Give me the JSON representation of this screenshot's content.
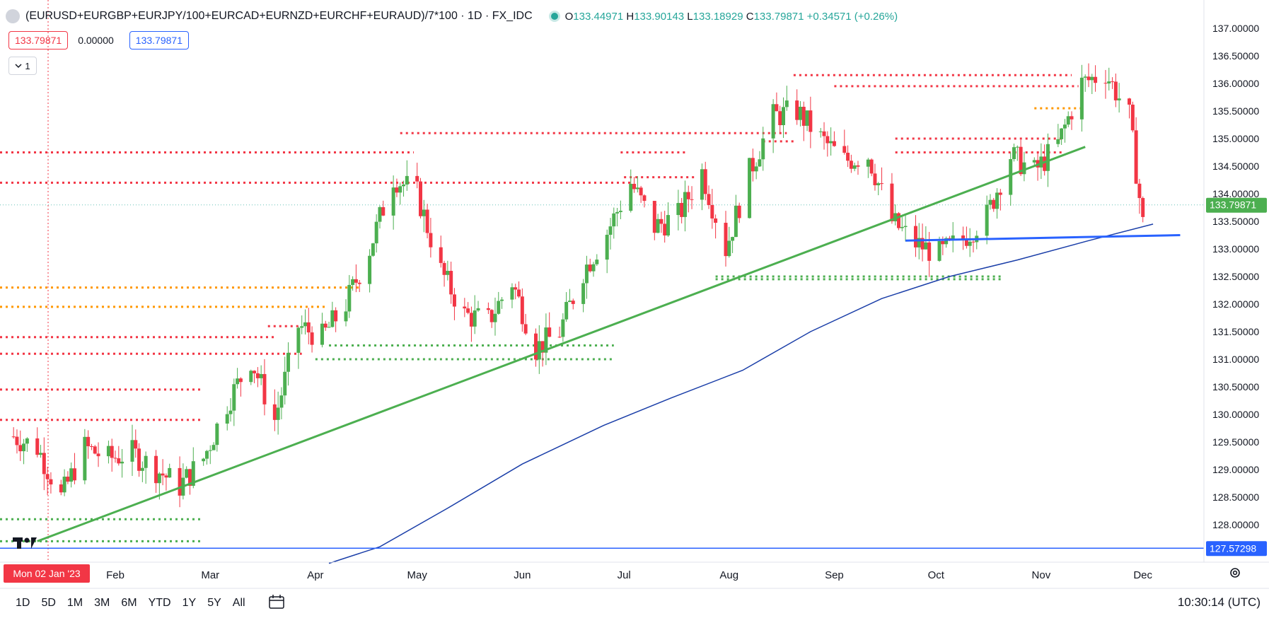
{
  "legend": {
    "symbol": "(EURUSD+EURGBP+EURJPY/100+EURCAD+EURNZD+EURCHF+EURAUD)/7*100 · 1D · FX_IDC",
    "o_label": "O",
    "o_value": "133.44971",
    "h_label": "H",
    "h_value": "133.90143",
    "l_label": "L",
    "l_value": "133.18929",
    "c_label": "C",
    "c_value": "133.79871",
    "change": "+0.34571 (+0.26%)"
  },
  "indicator_values": {
    "value1": "133.79871",
    "value2": "0.00000",
    "value3": "133.79871"
  },
  "collapse_button": "1",
  "time_ranges": [
    "1D",
    "5D",
    "1M",
    "3M",
    "6M",
    "YTD",
    "1Y",
    "5Y",
    "All"
  ],
  "clock": "10:30:14 (UTC)",
  "colors": {
    "up": "#4caf50",
    "down": "#f23645",
    "ma": "#1a3ea8",
    "trend": "#4caf50",
    "hline": "#2962ff",
    "resistance": "#f23645",
    "support": "#4caf50",
    "orange": "#ff9800"
  },
  "chart_data": {
    "type": "candlestick",
    "y_ticks": [
      "137.00000",
      "136.50000",
      "136.00000",
      "135.50000",
      "135.00000",
      "134.50000",
      "134.00000",
      "133.50000",
      "133.00000",
      "132.50000",
      "132.00000",
      "131.50000",
      "131.00000",
      "130.50000",
      "130.00000",
      "129.50000",
      "129.00000",
      "128.50000",
      "128.00000"
    ],
    "ylim": [
      127.3,
      137.25
    ],
    "x_labels": [
      "Feb",
      "Mar",
      "Apr",
      "May",
      "Jun",
      "Jul",
      "Aug",
      "Sep",
      "Oct",
      "Nov",
      "Dec"
    ],
    "crosshair_date": "Mon 02 Jan '23",
    "last_price_label": "133.79871",
    "hline_label": "127.57298",
    "hline_value": 127.57298,
    "last_price": 133.79871,
    "series": [
      {
        "date": "2023-01-02",
        "value": 129.6
      },
      {
        "date": "2023-01-09",
        "value": 129.4
      },
      {
        "date": "2023-01-16",
        "value": 128.5
      },
      {
        "date": "2023-01-23",
        "value": 129.4
      },
      {
        "date": "2023-01-30",
        "value": 129.2
      },
      {
        "date": "2023-02-06",
        "value": 129.3
      },
      {
        "date": "2023-02-13",
        "value": 129.0
      },
      {
        "date": "2023-02-20",
        "value": 128.7
      },
      {
        "date": "2023-02-27",
        "value": 129.2
      },
      {
        "date": "2023-03-06",
        "value": 130.2
      },
      {
        "date": "2023-03-13",
        "value": 131.0
      },
      {
        "date": "2023-03-20",
        "value": 129.9
      },
      {
        "date": "2023-03-27",
        "value": 131.6
      },
      {
        "date": "2023-04-03",
        "value": 131.4
      },
      {
        "date": "2023-04-10",
        "value": 132.0
      },
      {
        "date": "2023-04-17",
        "value": 133.0
      },
      {
        "date": "2023-04-24",
        "value": 134.3
      },
      {
        "date": "2023-05-01",
        "value": 134.0
      },
      {
        "date": "2023-05-08",
        "value": 132.6
      },
      {
        "date": "2023-05-15",
        "value": 131.8
      },
      {
        "date": "2023-05-22",
        "value": 131.7
      },
      {
        "date": "2023-05-29",
        "value": 132.4
      },
      {
        "date": "2023-06-05",
        "value": 131.2
      },
      {
        "date": "2023-06-12",
        "value": 131.5
      },
      {
        "date": "2023-06-19",
        "value": 132.6
      },
      {
        "date": "2023-06-26",
        "value": 133.3
      },
      {
        "date": "2023-07-03",
        "value": 134.2
      },
      {
        "date": "2023-07-10",
        "value": 133.4
      },
      {
        "date": "2023-07-17",
        "value": 133.6
      },
      {
        "date": "2023-07-24",
        "value": 134.4
      },
      {
        "date": "2023-07-31",
        "value": 133.0
      },
      {
        "date": "2023-08-07",
        "value": 134.4
      },
      {
        "date": "2023-08-14",
        "value": 135.4
      },
      {
        "date": "2023-08-21",
        "value": 135.5
      },
      {
        "date": "2023-08-28",
        "value": 135.0
      },
      {
        "date": "2023-09-04",
        "value": 134.6
      },
      {
        "date": "2023-09-11",
        "value": 134.7
      },
      {
        "date": "2023-09-18",
        "value": 133.5
      },
      {
        "date": "2023-09-25",
        "value": 133.1
      },
      {
        "date": "2023-10-02",
        "value": 132.9
      },
      {
        "date": "2023-10-09",
        "value": 133.2
      },
      {
        "date": "2023-10-16",
        "value": 133.6
      },
      {
        "date": "2023-10-23",
        "value": 134.7
      },
      {
        "date": "2023-10-30",
        "value": 134.4
      },
      {
        "date": "2023-11-06",
        "value": 134.9
      },
      {
        "date": "2023-11-13",
        "value": 136.0
      },
      {
        "date": "2023-11-20",
        "value": 136.2
      },
      {
        "date": "2023-11-27",
        "value": 135.4
      },
      {
        "date": "2023-12-01",
        "value": 133.45
      },
      {
        "date": "2023-12-04",
        "value": 133.79871
      }
    ],
    "ma_series": [
      {
        "date": "2023-04-05",
        "value": 127.3
      },
      {
        "date": "2023-04-20",
        "value": 127.6
      },
      {
        "date": "2023-05-10",
        "value": 128.3
      },
      {
        "date": "2023-06-01",
        "value": 129.1
      },
      {
        "date": "2023-06-25",
        "value": 129.8
      },
      {
        "date": "2023-07-15",
        "value": 130.3
      },
      {
        "date": "2023-08-05",
        "value": 130.8
      },
      {
        "date": "2023-08-25",
        "value": 131.5
      },
      {
        "date": "2023-09-15",
        "value": 132.1
      },
      {
        "date": "2023-10-05",
        "value": 132.5
      },
      {
        "date": "2023-10-25",
        "value": 132.8
      },
      {
        "date": "2023-11-15",
        "value": 133.15
      },
      {
        "date": "2023-12-04",
        "value": 133.45
      }
    ],
    "trendline": [
      {
        "date": "2023-01-09",
        "value": 127.7
      },
      {
        "date": "2023-11-14",
        "value": 134.85
      }
    ],
    "blue_segment": [
      {
        "date": "2023-09-22",
        "value": 133.15
      },
      {
        "date": "2023-12-12",
        "value": 133.25
      }
    ],
    "levels": [
      {
        "value": 134.75,
        "from": "2022-12-20",
        "to": "2023-04-30",
        "color": "resistance"
      },
      {
        "value": 134.2,
        "from": "2022-12-20",
        "to": "2023-07-03",
        "color": "resistance"
      },
      {
        "value": 135.1,
        "from": "2023-04-26",
        "to": "2023-08-18",
        "color": "resistance"
      },
      {
        "value": 136.15,
        "from": "2023-08-20",
        "to": "2023-11-10",
        "color": "resistance"
      },
      {
        "value": 135.95,
        "from": "2023-09-01",
        "to": "2023-11-12",
        "color": "resistance"
      },
      {
        "value": 135.0,
        "from": "2023-09-19",
        "to": "2023-11-08",
        "color": "resistance"
      },
      {
        "value": 134.75,
        "from": "2023-09-19",
        "to": "2023-11-08",
        "color": "resistance"
      },
      {
        "value": 134.75,
        "from": "2023-06-30",
        "to": "2023-07-20",
        "color": "resistance"
      },
      {
        "value": 134.95,
        "from": "2023-08-11",
        "to": "2023-08-21",
        "color": "resistance"
      },
      {
        "value": 131.4,
        "from": "2022-12-20",
        "to": "2023-03-20",
        "color": "resistance"
      },
      {
        "value": 131.1,
        "from": "2022-12-20",
        "to": "2023-03-28",
        "color": "resistance"
      },
      {
        "value": 130.45,
        "from": "2022-12-20",
        "to": "2023-02-27",
        "color": "resistance"
      },
      {
        "value": 129.9,
        "from": "2022-12-20",
        "to": "2023-02-27",
        "color": "resistance"
      },
      {
        "value": 131.6,
        "from": "2023-03-18",
        "to": "2023-03-28",
        "color": "resistance"
      },
      {
        "value": 134.3,
        "from": "2023-07-01",
        "to": "2023-07-22",
        "color": "resistance"
      },
      {
        "value": 132.3,
        "from": "2022-12-20",
        "to": "2023-04-14",
        "color": "orange"
      },
      {
        "value": 131.95,
        "from": "2022-12-20",
        "to": "2023-04-04",
        "color": "orange"
      },
      {
        "value": 135.55,
        "from": "2023-10-30",
        "to": "2023-11-13",
        "color": "orange"
      },
      {
        "value": 131.25,
        "from": "2023-04-05",
        "to": "2023-06-28",
        "color": "support"
      },
      {
        "value": 131.0,
        "from": "2023-04-01",
        "to": "2023-06-28",
        "color": "support"
      },
      {
        "value": 128.1,
        "from": "2022-12-20",
        "to": "2023-02-27",
        "color": "support"
      },
      {
        "value": 127.7,
        "from": "2022-12-20",
        "to": "2023-02-27",
        "color": "support"
      },
      {
        "value": 132.5,
        "from": "2023-07-28",
        "to": "2023-10-21",
        "color": "support"
      },
      {
        "value": 132.45,
        "from": "2023-07-28",
        "to": "2023-10-21",
        "color": "support"
      }
    ]
  }
}
